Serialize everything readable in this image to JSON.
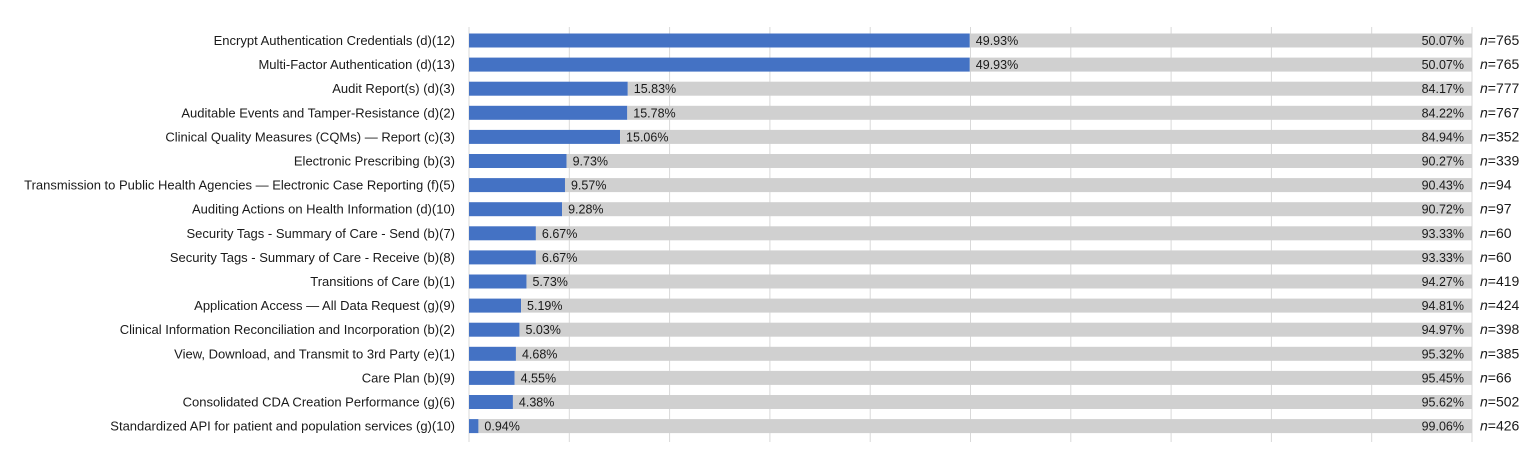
{
  "chart_data": {
    "type": "bar",
    "orientation": "horizontal",
    "stacked": true,
    "grid": true,
    "xlim": [
      0,
      100
    ],
    "categories": [
      "Encrypt Authentication Credentials (d)(12)",
      "Multi-Factor Authentication (d)(13)",
      "Audit Report(s) (d)(3)",
      "Auditable Events and Tamper-Resistance (d)(2)",
      "Clinical Quality Measures (CQMs) — Report (c)(3)",
      "Electronic Prescribing (b)(3)",
      "Transmission to Public Health Agencies — Electronic Case Reporting (f)(5)",
      "Auditing Actions on Health Information (d)(10)",
      "Security Tags - Summary of Care - Send (b)(7)",
      "Security Tags - Summary of Care - Receive (b)(8)",
      "Transitions of Care (b)(1)",
      "Application Access — All Data Request (g)(9)",
      "Clinical Information Reconciliation and Incorporation (b)(2)",
      "View, Download, and Transmit to 3rd Party (e)(1)",
      "Care Plan (b)(9)",
      "Consolidated CDA Creation Performance (g)(6)",
      "Standardized API for patient and population services (g)(10)"
    ],
    "series": [
      {
        "color": "#4472C4",
        "values": [
          49.93,
          49.93,
          15.83,
          15.78,
          15.06,
          9.73,
          9.57,
          9.28,
          6.67,
          6.67,
          5.73,
          5.19,
          5.03,
          4.68,
          4.55,
          4.38,
          0.94
        ],
        "labels": [
          "49.93%",
          "49.93%",
          "15.83%",
          "15.78%",
          "15.06%",
          "9.73%",
          "9.57%",
          "9.28%",
          "6.67%",
          "6.67%",
          "5.73%",
          "5.19%",
          "5.03%",
          "4.68%",
          "4.55%",
          "4.38%",
          "0.94%"
        ]
      },
      {
        "color": "#D0D0D0",
        "values": [
          50.07,
          50.07,
          84.17,
          84.22,
          84.94,
          90.27,
          90.43,
          90.72,
          93.33,
          93.33,
          94.27,
          94.81,
          94.97,
          95.32,
          95.45,
          95.62,
          99.06
        ],
        "labels": [
          "50.07%",
          "50.07%",
          "84.17%",
          "84.22%",
          "84.94%",
          "90.27%",
          "90.43%",
          "90.72%",
          "93.33%",
          "93.33%",
          "94.27%",
          "94.81%",
          "94.97%",
          "95.32%",
          "95.45%",
          "95.62%",
          "99.06%"
        ]
      }
    ],
    "n_prefix": "n",
    "n_values": [
      "=765",
      "=765",
      "=777",
      "=767",
      "=352",
      "=339",
      "=94",
      "=97",
      "=60",
      "=60",
      "=419",
      "=424",
      "=398",
      "=385",
      "=66",
      "=502",
      "=426"
    ],
    "gridline_color": "#D9D9D9"
  }
}
